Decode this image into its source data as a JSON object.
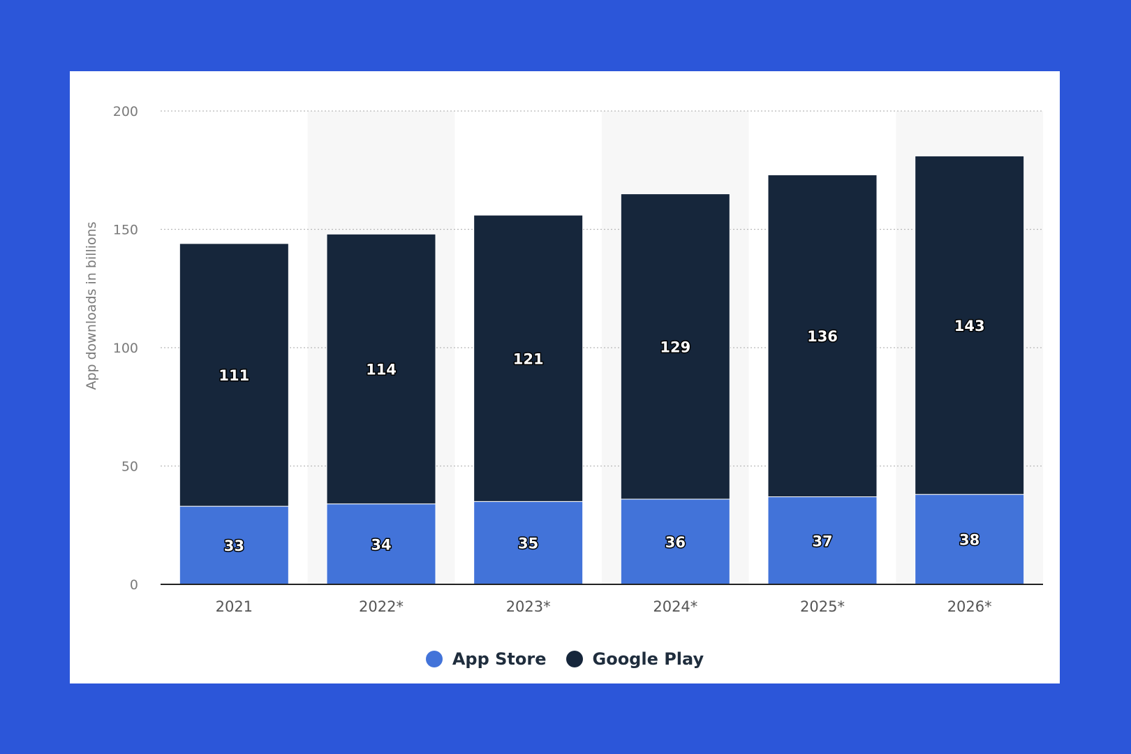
{
  "chart_data": {
    "type": "bar",
    "stacked": true,
    "categories": [
      "2021",
      "2022*",
      "2023*",
      "2024*",
      "2025*",
      "2026*"
    ],
    "series": [
      {
        "name": "App Store",
        "values": [
          33,
          34,
          35,
          36,
          37,
          38
        ],
        "color": "#4273d9"
      },
      {
        "name": "Google Play",
        "values": [
          111,
          114,
          121,
          129,
          136,
          143
        ],
        "color": "#16263b"
      }
    ],
    "title": "",
    "xlabel": "",
    "ylabel": "App downloads in billions",
    "ylim": [
      0,
      200
    ],
    "yticks": [
      0,
      50,
      100,
      150,
      200
    ],
    "grid": true,
    "legend_position": "bottom-center",
    "data_labels": true,
    "colors": {
      "page_background": "#2c56d9",
      "card_background": "#ffffff",
      "gridline": "#b8b8b8",
      "axis_line": "#222222",
      "band_shade": "#f7f7f7"
    }
  }
}
